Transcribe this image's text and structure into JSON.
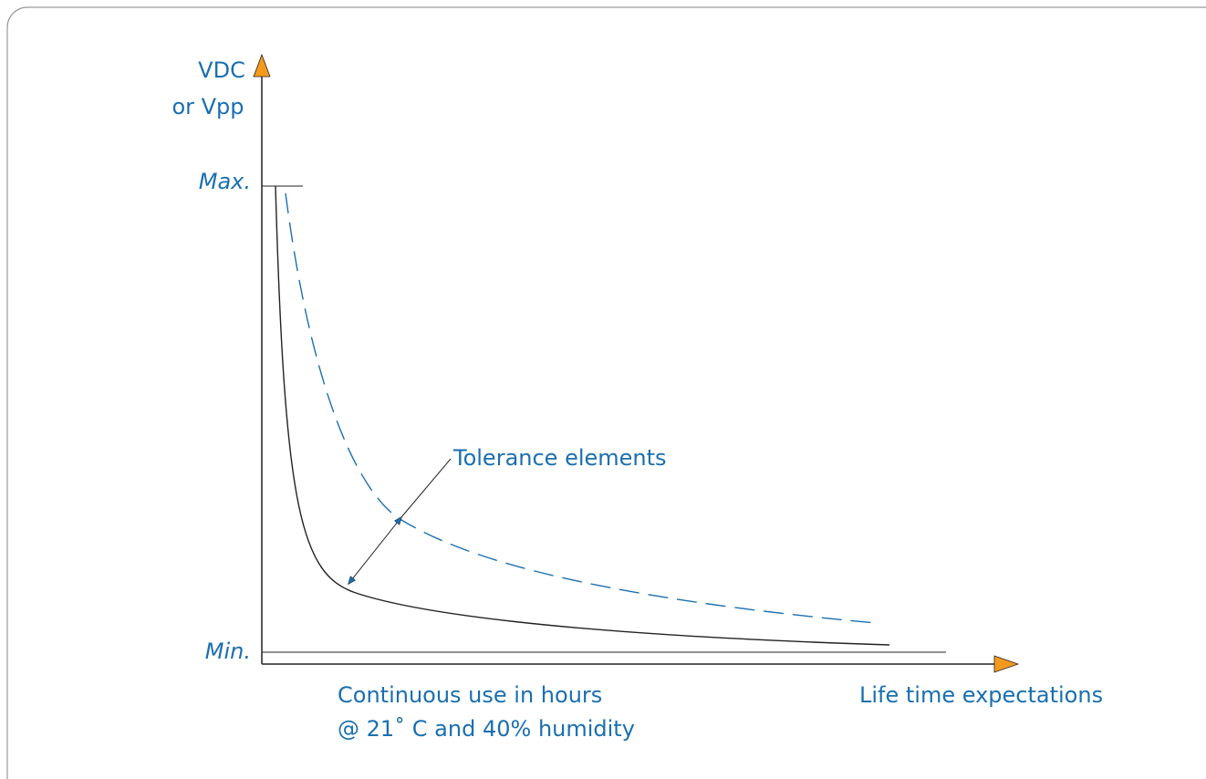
{
  "axis": {
    "y_label": [
      "VDC",
      "or Vpp"
    ],
    "max_label": "Max.",
    "min_label": "Min.",
    "x_label": "Life time expectations"
  },
  "annotation": "Tolerance elements",
  "caption": [
    "Continuous use in hours",
    "@ 21˚ C and 40% humidity"
  ]
}
